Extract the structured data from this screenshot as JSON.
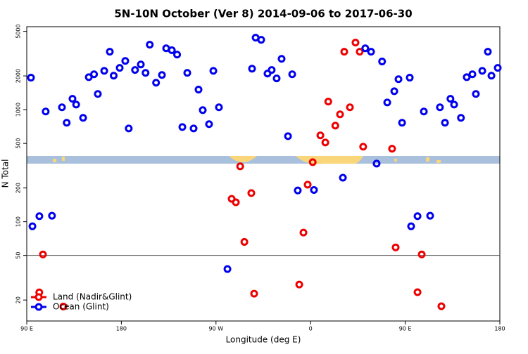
{
  "chart_data": {
    "type": "scatter",
    "title": "5N-10N October (Ver 8)   2014-09-06 to 2017-06-30",
    "x_label": "Longitude (deg E)",
    "y_label": "N Total",
    "log_y": true,
    "legend": "lower left",
    "xlim": [
      90,
      540
    ],
    "xticks": [
      {
        "value": 90,
        "label": "90 E"
      },
      180,
      {
        "value": 270,
        "label": "90 W"
      },
      {
        "value": 360,
        "label": "0"
      },
      {
        "value": 450,
        "label": "90 E"
      },
      {
        "value": 540,
        "label": "180"
      }
    ],
    "ylim": [
      13,
      5500
    ],
    "yticks": [
      20,
      50,
      100,
      200,
      500,
      1000,
      2000,
      5000
    ],
    "hline": 50,
    "series": [
      {
        "name": "Land (Nadir&Glint)",
        "color": "#ee0000",
        "x": [
          105.4,
          101.9,
          124.8,
          293,
          284.9,
          288.9,
          297,
          303.6,
          306.3,
          349.2,
          353.2,
          357.2,
          362,
          369.3,
          374,
          376.8,
          383.5,
          388,
          392,
          397.4,
          402.7,
          406.7,
          410,
          437.5,
          440.9,
          461.7,
          465.7,
          484.4
        ],
        "values": [
          51,
          23.4,
          17.5,
          312,
          160,
          149,
          66,
          180,
          22.8,
          27.5,
          80,
          214,
          340,
          589,
          509,
          1180,
          720,
          908,
          3290,
          1050,
          3970,
          3290,
          467,
          448,
          59,
          23.5,
          51,
          17.6
        ]
      },
      {
        "name": "Ocean (Glint)",
        "color": "#0000ee",
        "x": [
          94,
          95.4,
          102,
          108,
          114,
          123.5,
          128,
          133.5,
          137,
          143.6,
          149,
          154,
          157.6,
          163.7,
          169,
          172.7,
          178.4,
          183.7,
          187,
          193,
          198.5,
          203,
          207,
          213,
          218.6,
          222.6,
          228,
          233,
          238,
          242.7,
          248.7,
          253.4,
          257.4,
          263.4,
          267.5,
          272.8,
          280.9,
          304.3,
          307.7,
          313,
          319,
          323,
          327.7,
          332.4,
          338.5,
          342.5,
          347.8,
          363.2,
          390.7,
          412,
          417.5,
          422.8,
          428,
          432.9,
          439.6,
          443.6,
          447,
          454.3,
          455.6,
          461.7,
          467.7,
          473.7,
          483,
          487.8,
          493,
          496.5,
          503,
          508.5,
          513.9,
          517.2,
          523.3,
          528.6,
          532,
          538
        ],
        "values": [
          1930,
          91,
          112,
          962,
          113,
          1050,
          764,
          1250,
          1110,
          845,
          1950,
          2070,
          1380,
          2220,
          3290,
          2010,
          2360,
          2720,
          680,
          2260,
          2530,
          2130,
          3800,
          1740,
          2040,
          3530,
          3390,
          3100,
          700,
          2130,
          680,
          1510,
          990,
          742,
          2220,
          1050,
          37.8,
          2320,
          4390,
          4200,
          2100,
          2260,
          1900,
          2840,
          580,
          2070,
          190,
          192,
          247,
          3530,
          3290,
          330,
          2690,
          1160,
          1460,
          1870,
          764,
          1930,
          91,
          112,
          962,
          113,
          1050,
          764,
          1250,
          1110,
          845,
          1950,
          2070,
          1380,
          2220,
          3290,
          2010,
          2360
        ]
      }
    ]
  }
}
